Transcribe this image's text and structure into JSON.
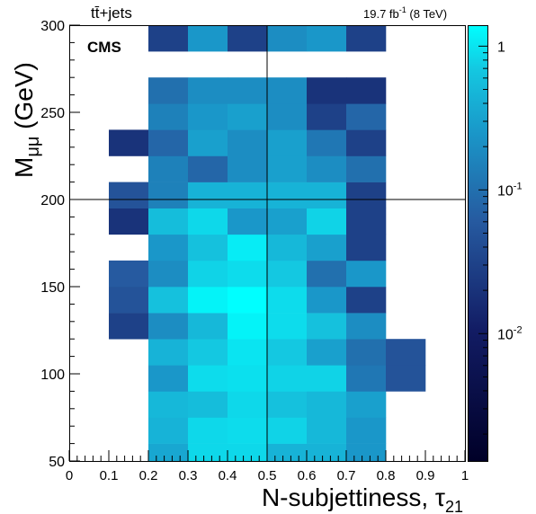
{
  "header": {
    "process": "tt̄+jets",
    "lumi": "19.7 fb",
    "lumi_exp": "-1",
    "energy": " (8 TeV)",
    "experiment": "CMS"
  },
  "chart_data": {
    "type": "heatmap",
    "xlabel": "N-subjettiness, τ",
    "xlabel_sub": "21",
    "ylabel": "M",
    "ylabel_sub": "μμ",
    "ylabel_unit": " (GeV)",
    "xlim": [
      0,
      1
    ],
    "ylim": [
      50,
      300
    ],
    "x_bin_edges": [
      0,
      0.1,
      0.2,
      0.3,
      0.4,
      0.5,
      0.6,
      0.7,
      0.8,
      0.9,
      1.0
    ],
    "y_bin_edges": [
      50,
      60,
      75,
      90,
      105,
      120,
      135,
      150,
      165,
      180,
      195,
      210,
      225,
      240,
      255,
      270,
      285,
      300
    ],
    "x_ticks": [
      "0",
      "0.1",
      "0.2",
      "0.3",
      "0.4",
      "0.5",
      "0.6",
      "0.7",
      "0.8",
      "0.9",
      "1"
    ],
    "y_ticks": [
      "50",
      "100",
      "150",
      "200",
      "250",
      "300"
    ],
    "z_scale": "log",
    "zlim": [
      0.0013,
      1.4
    ],
    "z_tick_labels": [
      {
        "value": 1,
        "base": "1",
        "exp": ""
      },
      {
        "value": 0.1,
        "base": "10",
        "exp": "-1"
      },
      {
        "value": 0.01,
        "base": "10",
        "exp": "-2"
      }
    ],
    "crosshair": {
      "x": 0.5,
      "y": 200
    },
    "cells": [
      [
        null,
        null,
        0.35,
        0.85,
        0.85,
        0.45,
        0.45,
        0.25,
        null,
        null
      ],
      [
        null,
        null,
        0.45,
        0.85,
        0.9,
        0.8,
        0.5,
        0.25,
        null,
        null
      ],
      [
        null,
        null,
        0.5,
        0.55,
        0.85,
        0.6,
        0.5,
        0.3,
        null,
        null
      ],
      [
        null,
        null,
        0.25,
        0.9,
        0.95,
        0.8,
        0.8,
        0.12,
        0.05,
        null
      ],
      [
        null,
        null,
        0.45,
        0.7,
        1.0,
        0.7,
        0.3,
        0.1,
        0.05,
        null
      ],
      [
        null,
        0.03,
        0.2,
        0.5,
        1.2,
        0.9,
        0.6,
        0.2,
        null,
        null
      ],
      [
        null,
        0.05,
        0.6,
        1.2,
        1.4,
        0.9,
        0.25,
        0.03,
        null,
        null
      ],
      [
        null,
        0.06,
        0.2,
        0.8,
        0.9,
        0.7,
        0.1,
        0.25,
        null,
        null
      ],
      [
        null,
        null,
        0.25,
        0.6,
        1.1,
        0.5,
        0.3,
        0.03,
        null,
        null
      ],
      [
        null,
        0.02,
        0.55,
        0.85,
        0.25,
        0.3,
        0.8,
        0.03,
        null,
        null
      ],
      [
        null,
        0.05,
        0.15,
        0.45,
        0.45,
        0.45,
        0.45,
        0.03,
        null,
        null
      ],
      [
        null,
        null,
        0.15,
        0.08,
        0.2,
        0.3,
        0.2,
        0.1,
        null,
        null
      ],
      [
        null,
        0.02,
        0.08,
        0.3,
        0.2,
        0.3,
        0.12,
        0.03,
        null,
        null
      ],
      [
        null,
        null,
        0.15,
        0.25,
        0.3,
        0.2,
        0.03,
        0.08,
        null,
        null
      ],
      [
        null,
        null,
        0.1,
        0.2,
        0.2,
        0.2,
        0.02,
        0.02,
        null,
        null
      ],
      [
        null,
        null,
        null,
        null,
        null,
        null,
        null,
        null,
        null,
        null
      ],
      [
        null,
        null,
        0.03,
        0.25,
        0.03,
        0.2,
        0.25,
        0.03,
        null,
        null
      ]
    ]
  }
}
